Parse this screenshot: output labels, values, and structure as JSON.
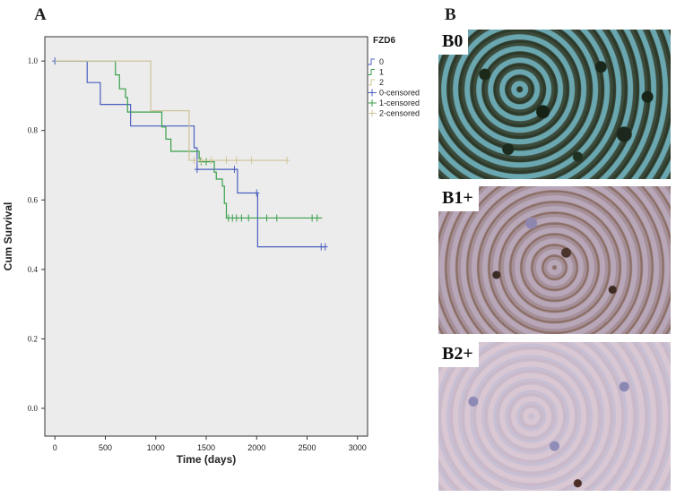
{
  "panels": {
    "a_label": "A",
    "b_label": "B"
  },
  "micrographs": [
    {
      "label": "B0"
    },
    {
      "label": "B1+"
    },
    {
      "label": "B2+"
    }
  ],
  "chart_data": {
    "type": "line",
    "subtype": "kaplan-meier step",
    "title": "",
    "xlabel": "Time (days)",
    "ylabel": "Cum Survival",
    "xlim": [
      -100,
      3100
    ],
    "ylim": [
      -0.08,
      1.07
    ],
    "xticks": [
      "0",
      "500",
      "1000",
      "1500",
      "2000",
      "2500",
      "3000"
    ],
    "yticks": [
      "0.0",
      "0.2",
      "0.4",
      "0.6",
      "0.8",
      "1.0"
    ],
    "grid": false,
    "background": "#ececec",
    "legend": {
      "title": "FZD6",
      "placement": "top-right outside",
      "entries": [
        "0",
        "1",
        "2",
        "0-censored",
        "1-censored",
        "2-censored"
      ]
    },
    "series": [
      {
        "name": "0",
        "color": "#4a5fc0",
        "steps": [
          [
            0,
            1.0
          ],
          [
            320,
            0.938
          ],
          [
            450,
            0.875
          ],
          [
            750,
            0.813
          ],
          [
            1250,
            0.813
          ],
          [
            1380,
            0.75
          ],
          [
            1410,
            0.688
          ],
          [
            1800,
            0.688
          ],
          [
            1810,
            0.62
          ],
          [
            2000,
            0.62
          ],
          [
            2010,
            0.465
          ],
          [
            2680,
            0.465
          ]
        ],
        "censored": [
          [
            0,
            1.0
          ],
          [
            1410,
            0.688
          ],
          [
            1780,
            0.688
          ],
          [
            2000,
            0.62
          ],
          [
            2640,
            0.465
          ],
          [
            2680,
            0.465
          ]
        ]
      },
      {
        "name": "1",
        "color": "#3aa04a",
        "steps": [
          [
            0,
            1.0
          ],
          [
            590,
            1.0
          ],
          [
            600,
            0.96
          ],
          [
            640,
            0.92
          ],
          [
            700,
            0.895
          ],
          [
            720,
            0.853
          ],
          [
            1050,
            0.853
          ],
          [
            1060,
            0.81
          ],
          [
            1100,
            0.775
          ],
          [
            1150,
            0.74
          ],
          [
            1420,
            0.74
          ],
          [
            1430,
            0.72
          ],
          [
            1440,
            0.71
          ],
          [
            1560,
            0.71
          ],
          [
            1580,
            0.68
          ],
          [
            1600,
            0.66
          ],
          [
            1650,
            0.66
          ],
          [
            1660,
            0.64
          ],
          [
            1680,
            0.59
          ],
          [
            1700,
            0.548
          ],
          [
            2650,
            0.548
          ]
        ],
        "censored": [
          [
            1450,
            0.71
          ],
          [
            1500,
            0.71
          ],
          [
            1720,
            0.548
          ],
          [
            1760,
            0.548
          ],
          [
            1800,
            0.548
          ],
          [
            1850,
            0.548
          ],
          [
            1920,
            0.548
          ],
          [
            2100,
            0.548
          ],
          [
            2200,
            0.548
          ],
          [
            2550,
            0.548
          ],
          [
            2600,
            0.548
          ]
        ]
      },
      {
        "name": "2",
        "color": "#d0c49a",
        "steps": [
          [
            0,
            1.0
          ],
          [
            940,
            1.0
          ],
          [
            950,
            0.857
          ],
          [
            1320,
            0.857
          ],
          [
            1330,
            0.714
          ],
          [
            2310,
            0.714
          ]
        ],
        "censored": [
          [
            1380,
            0.714
          ],
          [
            1450,
            0.714
          ],
          [
            1550,
            0.714
          ],
          [
            1700,
            0.714
          ],
          [
            1800,
            0.714
          ],
          [
            1950,
            0.714
          ],
          [
            2300,
            0.714
          ]
        ]
      }
    ]
  }
}
